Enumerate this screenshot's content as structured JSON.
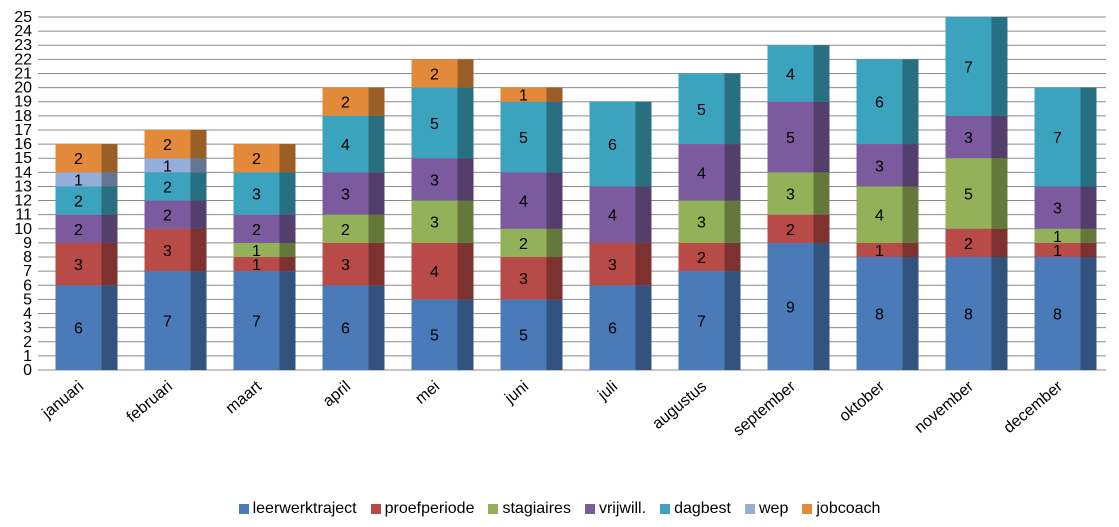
{
  "chart_data": {
    "type": "bar",
    "stacked": true,
    "categories": [
      "januari",
      "februari",
      "maart",
      "april",
      "mei",
      "juni",
      "juli",
      "augustus",
      "september",
      "oktober",
      "november",
      "december"
    ],
    "series": [
      {
        "name": "leerwerktraject",
        "color": "#4a7ab8",
        "values": [
          6,
          7,
          7,
          6,
          5,
          5,
          6,
          7,
          9,
          8,
          8,
          8
        ]
      },
      {
        "name": "proefperiode",
        "color": "#b84a47",
        "values": [
          3,
          3,
          1,
          3,
          4,
          3,
          3,
          2,
          2,
          1,
          2,
          1
        ]
      },
      {
        "name": "stagiaires",
        "color": "#93b158",
        "values": [
          0,
          0,
          1,
          2,
          3,
          2,
          0,
          3,
          3,
          4,
          5,
          1
        ]
      },
      {
        "name": "vrijwill.",
        "color": "#7b5b9e",
        "values": [
          2,
          2,
          2,
          3,
          3,
          4,
          4,
          4,
          5,
          3,
          3,
          3
        ]
      },
      {
        "name": "dagbest",
        "color": "#3ba3bd",
        "values": [
          2,
          2,
          3,
          4,
          5,
          5,
          6,
          5,
          4,
          6,
          7,
          7
        ]
      },
      {
        "name": "wep",
        "color": "#94aed8",
        "values": [
          1,
          1,
          0,
          0,
          0,
          0,
          0,
          0,
          0,
          0,
          0,
          0
        ]
      },
      {
        "name": "jobcoach",
        "color": "#e28a3a",
        "values": [
          2,
          2,
          2,
          2,
          2,
          1,
          0,
          0,
          0,
          0,
          0,
          0
        ]
      }
    ],
    "ylim": [
      0,
      25
    ],
    "yticks": [
      0,
      1,
      2,
      3,
      4,
      5,
      6,
      7,
      8,
      9,
      10,
      11,
      12,
      13,
      14,
      15,
      16,
      17,
      18,
      19,
      20,
      21,
      22,
      23,
      24,
      25
    ],
    "grid": true,
    "legend_position": "bottom",
    "title": "",
    "xlabel": "",
    "ylabel": ""
  }
}
